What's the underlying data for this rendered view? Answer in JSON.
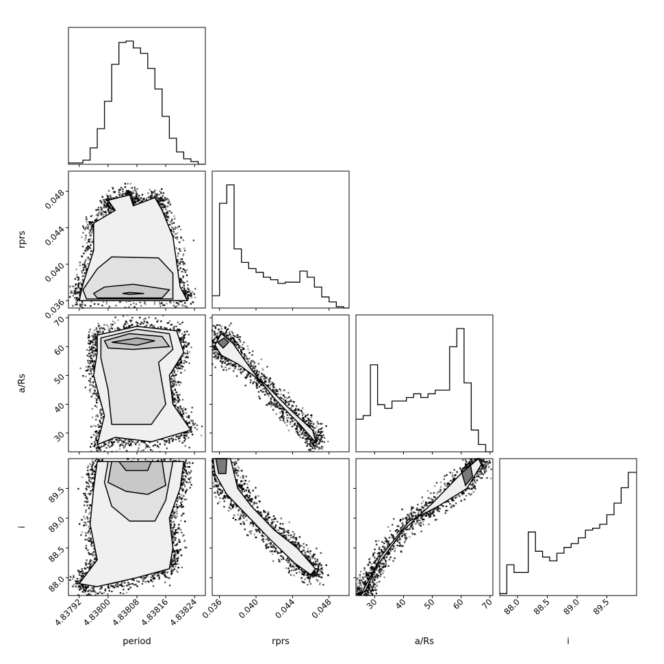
{
  "chart_data": {
    "type": "corner",
    "parameters": [
      "period",
      "rprs",
      "a/Rs",
      "i"
    ],
    "axis_labels": {
      "x": [
        "period",
        "rprs",
        "a/Rs",
        "i"
      ],
      "y": [
        "rprs",
        "a/Rs",
        "i"
      ]
    },
    "ranges": {
      "period": [
        4.83789,
        4.83827
      ],
      "rprs": [
        0.0352,
        0.0502
      ],
      "a/Rs": [
        23.5,
        71
      ],
      "i": [
        87.7,
        90.0
      ]
    },
    "ticks": {
      "period": {
        "values": [
          4.83792,
          4.838,
          4.83808,
          4.83816,
          4.83824
        ],
        "labels": [
          "4.83792",
          "4.83800",
          "4.83808",
          "4.83816",
          "4.83824"
        ]
      },
      "rprs": {
        "values": [
          0.036,
          0.04,
          0.044,
          0.048
        ],
        "labels": [
          "0.036",
          "0.040",
          "0.044",
          "0.048"
        ]
      },
      "a/Rs": {
        "values": [
          30,
          40,
          50,
          60,
          70
        ],
        "labels": [
          "30",
          "40",
          "50",
          "60",
          "70"
        ]
      },
      "i": {
        "values": [
          88.0,
          88.5,
          89.0,
          89.5
        ],
        "labels": [
          "88.0",
          "88.5",
          "89.0",
          "89.5"
        ]
      }
    },
    "histograms": {
      "period": {
        "edges": [
          4.83789,
          4.83791,
          4.83793,
          4.83795,
          4.83797,
          4.83799,
          4.83801,
          4.83803,
          4.83805,
          4.83807,
          4.83809,
          4.83811,
          4.83813,
          4.83815,
          4.83817,
          4.83819,
          4.83821,
          4.83823,
          4.83825,
          4.83827
        ],
        "counts": [
          1,
          1,
          3,
          12,
          26,
          46,
          73,
          89,
          90,
          85,
          81,
          70,
          55,
          35,
          19,
          9,
          4,
          2,
          0
        ]
      },
      "rprs": {
        "edges": [
          0.0352,
          0.036,
          0.0368,
          0.0376,
          0.0384,
          0.0392,
          0.04,
          0.0408,
          0.0416,
          0.0424,
          0.0432,
          0.044,
          0.0448,
          0.0456,
          0.0464,
          0.0472,
          0.048,
          0.0488,
          0.0496,
          0.0502
        ],
        "counts": [
          10,
          85,
          100,
          48,
          37,
          32,
          29,
          25,
          23,
          20,
          21,
          21,
          30,
          25,
          17,
          9,
          5,
          1,
          0
        ]
      },
      "a/Rs": {
        "edges": [
          23.5,
          26,
          28.5,
          31,
          33.5,
          36,
          38.5,
          41,
          43.5,
          46,
          48.5,
          51,
          53.5,
          56,
          58.5,
          61,
          63.5,
          66,
          68.5,
          71
        ],
        "counts": [
          9,
          10,
          24,
          13,
          12,
          14,
          14,
          15,
          16,
          15,
          16,
          17,
          17,
          29,
          34,
          19,
          6,
          2,
          0
        ]
      },
      "i": {
        "edges": [
          87.7,
          87.82,
          87.94,
          88.06,
          88.18,
          88.3,
          88.42,
          88.54,
          88.66,
          88.78,
          88.9,
          89.02,
          89.14,
          89.26,
          89.38,
          89.5,
          89.62,
          89.74,
          89.86,
          90.0
        ],
        "counts": [
          1,
          16,
          12,
          12,
          33,
          23,
          20,
          18,
          22,
          25,
          27,
          30,
          34,
          35,
          37,
          42,
          48,
          56,
          64
        ]
      }
    },
    "contours": {
      "rprs_vs_period": [
        [
          [
            4.83806,
            0.0369
          ],
          [
            4.8381,
            0.0368
          ],
          [
            4.83806,
            0.0367
          ],
          [
            4.83804,
            0.0368
          ]
        ],
        [
          [
            4.83797,
            0.0363
          ],
          [
            4.83815,
            0.0363
          ],
          [
            4.83817,
            0.0372
          ],
          [
            4.83807,
            0.0378
          ],
          [
            4.83799,
            0.0375
          ],
          [
            4.83796,
            0.0368
          ]
        ],
        [
          [
            4.83794,
            0.0362
          ],
          [
            4.83818,
            0.0362
          ],
          [
            4.83818,
            0.039
          ],
          [
            4.83814,
            0.0407
          ],
          [
            4.83801,
            0.0408
          ],
          [
            4.83797,
            0.0395
          ],
          [
            4.83793,
            0.0372
          ]
        ],
        [
          [
            4.83792,
            0.036
          ],
          [
            4.83822,
            0.036
          ],
          [
            4.8382,
            0.0375
          ],
          [
            4.83818,
            0.043
          ],
          [
            4.83815,
            0.0459
          ],
          [
            4.83813,
            0.0473
          ],
          [
            4.83807,
            0.0464
          ],
          [
            4.83806,
            0.0476
          ],
          [
            4.838,
            0.047
          ],
          [
            4.83802,
            0.0459
          ],
          [
            4.83796,
            0.0445
          ],
          [
            4.83796,
            0.0415
          ],
          [
            4.83793,
            0.0378
          ]
        ]
      ],
      "aRs_vs_period": [
        [
          [
            4.83801,
            61.5
          ],
          [
            4.83808,
            63
          ],
          [
            4.83813,
            62
          ],
          [
            4.83808,
            60.5
          ]
        ],
        [
          [
            4.83799,
            62
          ],
          [
            4.83806,
            64.5
          ],
          [
            4.83815,
            63.5
          ],
          [
            4.83817,
            60
          ],
          [
            4.83807,
            59
          ],
          [
            4.838,
            59.5
          ]
        ],
        [
          [
            4.83798,
            63
          ],
          [
            4.83808,
            66
          ],
          [
            4.83817,
            64.5
          ],
          [
            4.83818,
            59
          ],
          [
            4.83814,
            54.5
          ],
          [
            4.83816,
            40
          ],
          [
            4.83812,
            33
          ],
          [
            4.83801,
            33
          ],
          [
            4.838,
            45
          ],
          [
            4.83798,
            56
          ]
        ],
        [
          [
            4.83797,
            64
          ],
          [
            4.83808,
            67
          ],
          [
            4.83819,
            65.5
          ],
          [
            4.83821,
            58
          ],
          [
            4.83817,
            50
          ],
          [
            4.83818,
            40
          ],
          [
            4.83823,
            31
          ],
          [
            4.83812,
            27
          ],
          [
            4.83802,
            28.5
          ],
          [
            4.83797,
            26
          ],
          [
            4.83799,
            36
          ],
          [
            4.83796,
            50
          ],
          [
            4.83797,
            58
          ]
        ]
      ],
      "i_vs_period": [
        [
          [
            4.83803,
            89.95
          ],
          [
            4.83812,
            89.95
          ],
          [
            4.83811,
            89.8
          ],
          [
            4.83805,
            89.8
          ]
        ],
        [
          [
            4.83801,
            89.95
          ],
          [
            4.83815,
            89.95
          ],
          [
            4.83816,
            89.55
          ],
          [
            4.83811,
            89.4
          ],
          [
            4.83805,
            89.45
          ],
          [
            4.838,
            89.6
          ]
        ],
        [
          [
            4.838,
            89.95
          ],
          [
            4.83818,
            89.95
          ],
          [
            4.83816,
            89.3
          ],
          [
            4.83813,
            88.95
          ],
          [
            4.83806,
            88.95
          ],
          [
            4.83801,
            89.2
          ],
          [
            4.83799,
            89.6
          ]
        ],
        [
          [
            4.83797,
            89.95
          ],
          [
            4.83821,
            89.95
          ],
          [
            4.8382,
            89.5
          ],
          [
            4.83817,
            89.0
          ],
          [
            4.83818,
            88.5
          ],
          [
            4.83817,
            88.15
          ],
          [
            4.83808,
            88.0
          ],
          [
            4.83797,
            87.85
          ],
          [
            4.83792,
            87.9
          ],
          [
            4.83797,
            88.3
          ],
          [
            4.83795,
            88.9
          ],
          [
            4.83796,
            89.5
          ]
        ]
      ],
      "aRs_vs_rprs": [
        [
          [
            0.0358,
            61.5
          ],
          [
            0.0365,
            63
          ],
          [
            0.037,
            61.5
          ],
          [
            0.0364,
            59.5
          ]
        ],
        [
          [
            0.0355,
            60.5
          ],
          [
            0.0362,
            64.5
          ],
          [
            0.0375,
            61
          ],
          [
            0.0395,
            52
          ],
          [
            0.042,
            42
          ],
          [
            0.0448,
            33
          ],
          [
            0.0466,
            26.5
          ],
          [
            0.0462,
            31
          ],
          [
            0.0438,
            38
          ],
          [
            0.041,
            47
          ],
          [
            0.038,
            54
          ],
          [
            0.0362,
            57
          ]
        ]
      ],
      "i_vs_rprs": [
        [
          [
            0.0356,
            90.0
          ],
          [
            0.0368,
            90.0
          ],
          [
            0.0367,
            89.75
          ],
          [
            0.0359,
            89.75
          ]
        ],
        [
          [
            0.0353,
            90.0
          ],
          [
            0.0372,
            90.0
          ],
          [
            0.038,
            89.5
          ],
          [
            0.0395,
            89.2
          ],
          [
            0.042,
            88.8
          ],
          [
            0.0445,
            88.5
          ],
          [
            0.0465,
            88.15
          ],
          [
            0.046,
            88.05
          ],
          [
            0.0442,
            88.25
          ],
          [
            0.0415,
            88.65
          ],
          [
            0.039,
            89.05
          ],
          [
            0.0368,
            89.4
          ],
          [
            0.0355,
            89.75
          ]
        ]
      ],
      "i_vs_aRs": [
        [
          [
            60,
            89.8
          ],
          [
            63,
            89.95
          ],
          [
            64,
            89.7
          ],
          [
            61.5,
            89.55
          ]
        ],
        [
          [
            25,
            87.7
          ],
          [
            30,
            88.15
          ],
          [
            40,
            88.8
          ],
          [
            50,
            89.25
          ],
          [
            60,
            89.75
          ],
          [
            66,
            90.0
          ],
          [
            67,
            89.9
          ],
          [
            62,
            89.5
          ],
          [
            52,
            89.2
          ],
          [
            42,
            88.95
          ],
          [
            32,
            88.35
          ],
          [
            27,
            87.8
          ]
        ]
      ]
    }
  }
}
